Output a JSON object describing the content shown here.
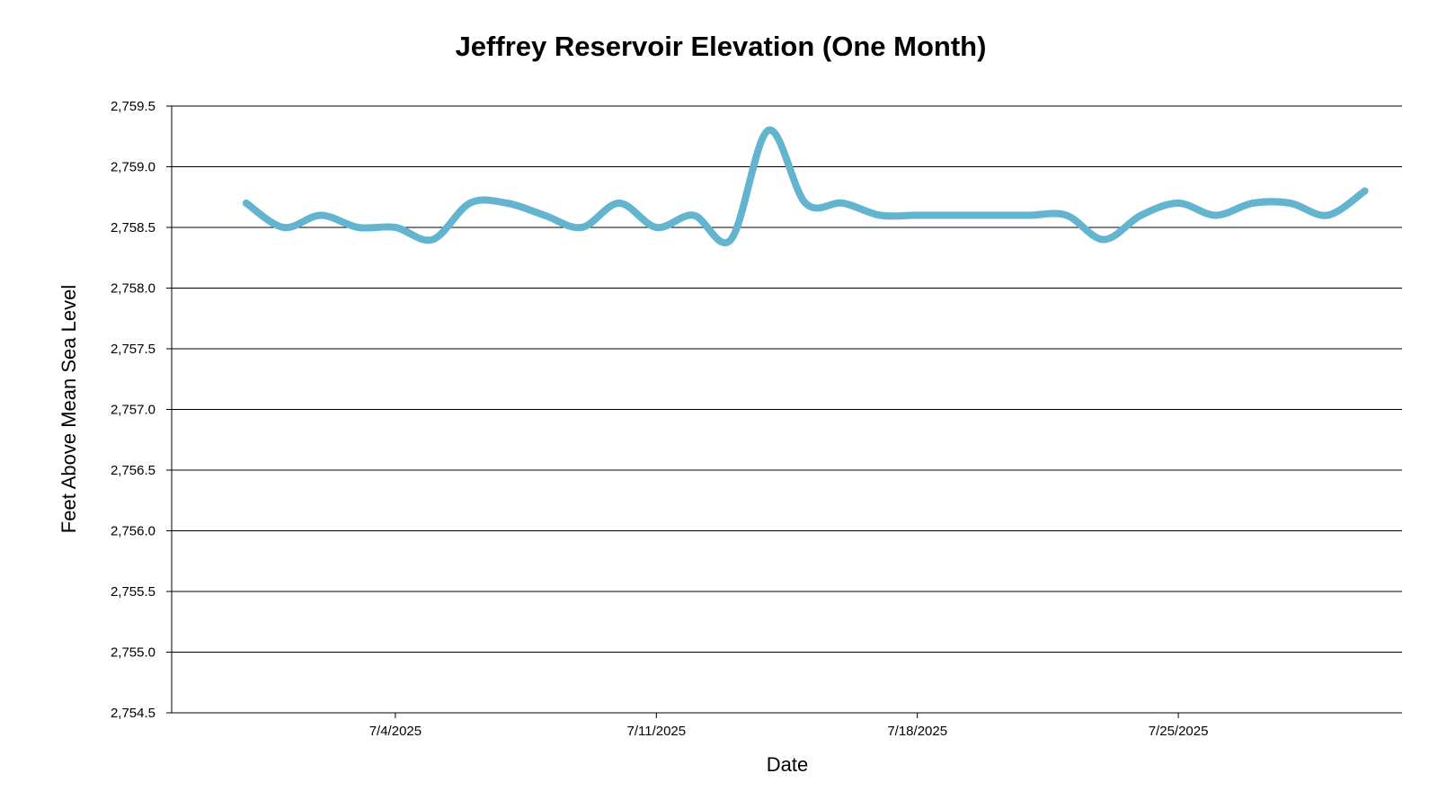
{
  "chart_data": {
    "type": "line",
    "title": "Jeffrey Reservoir Elevation (One Month)",
    "xlabel": "Date",
    "ylabel": "Feet Above Mean Sea Level",
    "ylim": [
      2754.5,
      2759.5
    ],
    "y_ticks": [
      2754.5,
      2755.0,
      2755.5,
      2756.0,
      2756.5,
      2757.0,
      2757.5,
      2758.0,
      2758.5,
      2759.0,
      2759.5
    ],
    "y_tick_labels": [
      "2,754.5",
      "2,755.0",
      "2,755.5",
      "2,756.0",
      "2,756.5",
      "2,757.0",
      "2,757.5",
      "2,758.0",
      "2,758.5",
      "2,759.0",
      "2,759.5"
    ],
    "xlim": [
      "2025-06-28",
      "2025-07-31"
    ],
    "x_ticks": [
      "2025-07-04",
      "2025-07-11",
      "2025-07-18",
      "2025-07-25"
    ],
    "x_tick_labels": [
      "7/4/2025",
      "7/11/2025",
      "7/18/2025",
      "7/25/2025"
    ],
    "grid": true,
    "legend": "none",
    "series": [
      {
        "color": "#63b4cf",
        "x": [
          "2025-06-30",
          "2025-07-01",
          "2025-07-02",
          "2025-07-03",
          "2025-07-04",
          "2025-07-05",
          "2025-07-06",
          "2025-07-07",
          "2025-07-08",
          "2025-07-09",
          "2025-07-10",
          "2025-07-11",
          "2025-07-12",
          "2025-07-13",
          "2025-07-14",
          "2025-07-15",
          "2025-07-16",
          "2025-07-17",
          "2025-07-18",
          "2025-07-19",
          "2025-07-20",
          "2025-07-21",
          "2025-07-22",
          "2025-07-23",
          "2025-07-24",
          "2025-07-25",
          "2025-07-26",
          "2025-07-27",
          "2025-07-28",
          "2025-07-29",
          "2025-07-30"
        ],
        "values": [
          2758.7,
          2758.5,
          2758.6,
          2758.5,
          2758.5,
          2758.4,
          2758.7,
          2758.7,
          2758.6,
          2758.5,
          2758.7,
          2758.5,
          2758.6,
          2758.4,
          2759.3,
          2758.7,
          2758.7,
          2758.6,
          2758.6,
          2758.6,
          2758.6,
          2758.6,
          2758.6,
          2758.4,
          2758.6,
          2758.7,
          2758.6,
          2758.7,
          2758.7,
          2758.6,
          2758.8
        ]
      }
    ]
  }
}
